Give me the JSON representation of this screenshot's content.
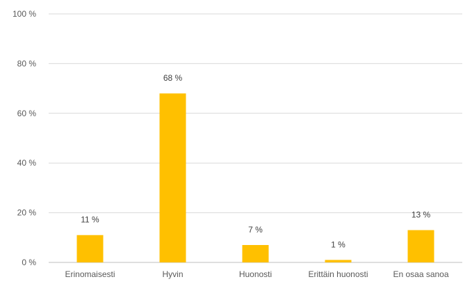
{
  "chart_data": {
    "type": "bar",
    "title": "",
    "xlabel": "",
    "ylabel": "",
    "categories": [
      "Erinomaisesti",
      "Hyvin",
      "Huonosti",
      "Erittäin huonosti",
      "En osaa sanoa"
    ],
    "values": [
      11,
      68,
      7,
      1,
      13
    ],
    "data_labels": [
      "11 %",
      "68 %",
      "7 %",
      "1 %",
      "13 %"
    ],
    "ylim": [
      0,
      100
    ],
    "yticks": [
      0,
      20,
      40,
      60,
      80,
      100
    ],
    "ytick_labels": [
      "0 %",
      "20 %",
      "40 %",
      "60 %",
      "80 %",
      "100 %"
    ],
    "grid": true,
    "legend": "none",
    "bar_color": "#FFC000"
  }
}
